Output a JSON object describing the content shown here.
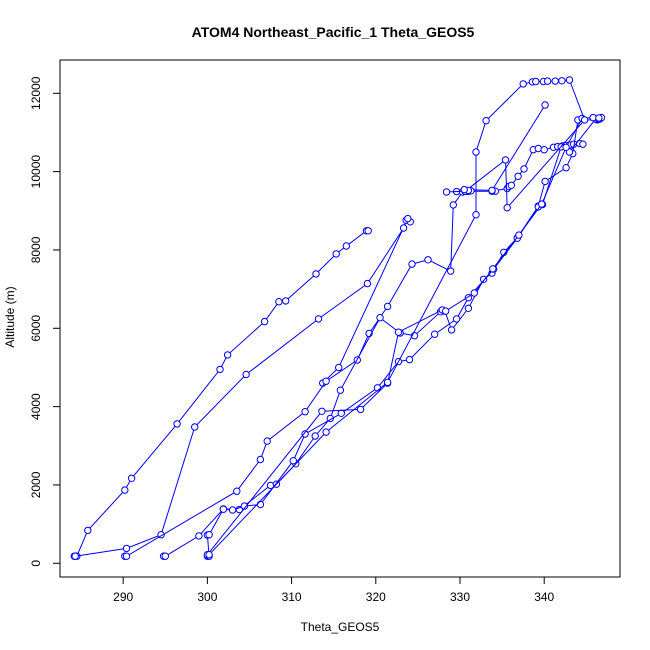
{
  "chart_data": {
    "type": "scatter",
    "title": "ATOM4 Northeast_Pacific_1 Theta_GEOS5",
    "xlabel": "Theta_GEOS5",
    "ylabel": "Altitude (m)",
    "xlim": [
      282.5,
      349
    ],
    "ylim": [
      -350,
      12850
    ],
    "xticks": [
      290,
      300,
      310,
      320,
      330,
      340
    ],
    "yticks": [
      0,
      2000,
      4000,
      6000,
      8000,
      10000,
      12000
    ],
    "series_color": "#0000ff",
    "marker": "open-circle",
    "connected": true,
    "series": [
      {
        "points": [
          [
            284.2,
            180
          ],
          [
            284.5,
            180
          ],
          [
            285.8,
            840
          ],
          [
            290.2,
            1870
          ],
          [
            291.0,
            2170
          ],
          [
            296.4,
            3560
          ],
          [
            301.5,
            4950
          ],
          [
            302.4,
            5320
          ],
          [
            306.8,
            6170
          ],
          [
            308.5,
            6680
          ],
          [
            309.3,
            6700
          ],
          [
            312.9,
            7390
          ],
          [
            315.3,
            7900
          ],
          [
            316.5,
            8100
          ],
          [
            318.9,
            8490
          ],
          [
            319.1,
            8490
          ]
        ]
      },
      {
        "points": [
          [
            284.3,
            180
          ],
          [
            290.4,
            380
          ],
          [
            294.5,
            730
          ],
          [
            298.5,
            3480
          ],
          [
            304.6,
            4820
          ],
          [
            313.2,
            6240
          ],
          [
            319.0,
            7140
          ],
          [
            323.3,
            8560
          ],
          [
            323.6,
            8760
          ],
          [
            324.1,
            8720
          ],
          [
            323.8,
            8800
          ],
          [
            315.6,
            5000
          ],
          [
            313.7,
            4600
          ]
        ]
      },
      {
        "points": [
          [
            290.2,
            180
          ],
          [
            290.4,
            180
          ],
          [
            303.5,
            1840
          ],
          [
            306.3,
            2650
          ],
          [
            307.1,
            3120
          ],
          [
            311.6,
            3870
          ],
          [
            314.1,
            4650
          ],
          [
            317.8,
            5190
          ],
          [
            319.2,
            5870
          ],
          [
            321.4,
            6560
          ],
          [
            324.3,
            7640
          ],
          [
            326.2,
            7750
          ],
          [
            328.9,
            7460
          ],
          [
            329.2,
            9150
          ],
          [
            330.3,
            9480
          ],
          [
            329.6,
            9490
          ],
          [
            331.0,
            9500
          ],
          [
            330.6,
            9500
          ],
          [
            330.9,
            9500
          ],
          [
            334.2,
            9500
          ],
          [
            333.8,
            9500
          ],
          [
            335.6,
            9570
          ],
          [
            335.8,
            9620
          ],
          [
            336.1,
            9650
          ],
          [
            336.9,
            9880
          ],
          [
            337.6,
            10070
          ],
          [
            338.7,
            10560
          ],
          [
            339.3,
            10590
          ],
          [
            340.0,
            10560
          ],
          [
            341.1,
            10620
          ],
          [
            341.6,
            10640
          ],
          [
            342.2,
            10660
          ],
          [
            342.6,
            10670
          ],
          [
            343.0,
            10680
          ],
          [
            343.5,
            10700
          ],
          [
            344.2,
            10720
          ],
          [
            344.6,
            10700
          ]
        ]
      },
      {
        "points": [
          [
            294.8,
            180
          ],
          [
            295.0,
            180
          ],
          [
            299.0,
            700
          ],
          [
            301.9,
            1390
          ],
          [
            303.8,
            1370
          ],
          [
            307.5,
            1990
          ],
          [
            308.2,
            2020
          ],
          [
            310.5,
            2540
          ],
          [
            312.8,
            3250
          ],
          [
            314.6,
            3700
          ],
          [
            315.8,
            4420
          ],
          [
            320.5,
            6270
          ],
          [
            322.9,
            5880
          ],
          [
            324.6,
            5810
          ],
          [
            327.7,
            6420
          ],
          [
            328.2,
            6440
          ],
          [
            329.0,
            5960
          ],
          [
            331.0,
            6510
          ],
          [
            332.8,
            7250
          ],
          [
            333.8,
            7410
          ],
          [
            335.2,
            7940
          ],
          [
            336.8,
            8310
          ],
          [
            339.3,
            9120
          ],
          [
            340.1,
            9750
          ],
          [
            342.6,
            10100
          ],
          [
            343.4,
            10460
          ],
          [
            344.0,
            11320
          ],
          [
            346.3,
            11320
          ],
          [
            346.5,
            11350
          ]
        ]
      },
      {
        "points": [
          [
            300.0,
            180
          ],
          [
            300.2,
            180
          ],
          [
            300.0,
            720
          ],
          [
            300.2,
            730
          ],
          [
            301.9,
            1380
          ],
          [
            303.0,
            1360
          ],
          [
            304.4,
            1460
          ],
          [
            306.3,
            1500
          ],
          [
            310.2,
            2620
          ],
          [
            311.6,
            3300
          ],
          [
            315.9,
            3830
          ],
          [
            320.2,
            4480
          ],
          [
            322.7,
            5150
          ],
          [
            324.0,
            5200
          ],
          [
            327.0,
            5850
          ],
          [
            329.6,
            6240
          ],
          [
            331.0,
            6780
          ],
          [
            334.0,
            7510
          ],
          [
            336.8,
            8300
          ],
          [
            339.3,
            9100
          ],
          [
            339.8,
            9160
          ],
          [
            342.0,
            10630
          ],
          [
            343.0,
            10500
          ],
          [
            346.1,
            11340
          ],
          [
            346.4,
            11350
          ],
          [
            346.6,
            11340
          ],
          [
            346.8,
            11380
          ]
        ]
      },
      {
        "points": [
          [
            300.0,
            220
          ],
          [
            313.6,
            3880
          ],
          [
            318.2,
            3930
          ],
          [
            321.4,
            4600
          ],
          [
            322.7,
            5900
          ],
          [
            327.9,
            6470
          ],
          [
            328.3,
            6440
          ],
          [
            331.7,
            6900
          ],
          [
            333.9,
            7520
          ],
          [
            337.0,
            8380
          ],
          [
            339.7,
            9170
          ],
          [
            342.6,
            10620
          ],
          [
            344.5,
            11360
          ],
          [
            345.8,
            11380
          ],
          [
            346.5,
            11370
          ]
        ]
      },
      {
        "points": [
          [
            300.2,
            220
          ],
          [
            314.1,
            3350
          ],
          [
            321.4,
            4620
          ],
          [
            331.9,
            8900
          ],
          [
            331.9,
            10500
          ],
          [
            333.1,
            11300
          ],
          [
            337.5,
            12240
          ],
          [
            338.6,
            12290
          ],
          [
            339.0,
            12300
          ],
          [
            339.9,
            12300
          ],
          [
            340.4,
            12310
          ],
          [
            341.3,
            12310
          ],
          [
            342.1,
            12320
          ],
          [
            343.0,
            12340
          ],
          [
            344.8,
            11320
          ],
          [
            335.6,
            9080
          ],
          [
            335.4,
            10300
          ],
          [
            330.6,
            9500
          ],
          [
            328.4,
            9480
          ],
          [
            331.3,
            9510
          ],
          [
            331.0,
            9520
          ],
          [
            330.5,
            9540
          ],
          [
            333.8,
            9520
          ],
          [
            340.1,
            11700
          ]
        ]
      }
    ]
  }
}
